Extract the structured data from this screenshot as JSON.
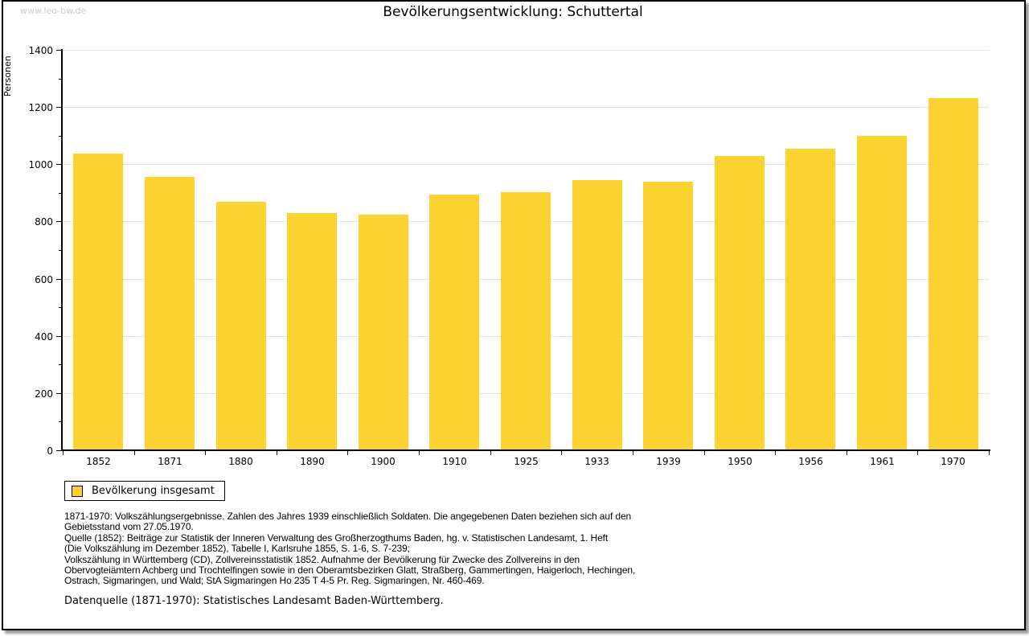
{
  "page": {
    "watermark": "www.leo-bw.de",
    "title": "Bevölkerungsentwicklung: Schuttertal"
  },
  "legend": {
    "label": "Bevölkerung insgesamt"
  },
  "chart_data": {
    "type": "bar",
    "title": "Bevölkerungsentwicklung: Schuttertal",
    "xlabel": "",
    "ylabel": "Personen",
    "categories": [
      "1852",
      "1871",
      "1880",
      "1890",
      "1900",
      "1910",
      "1925",
      "1933",
      "1939",
      "1950",
      "1956",
      "1961",
      "1970"
    ],
    "values": [
      1034,
      953,
      866,
      827,
      820,
      891,
      901,
      941,
      935,
      1027,
      1051,
      1097,
      1229
    ],
    "series_name": "Bevölkerung insgesamt",
    "ylim": [
      0,
      1400
    ],
    "yticks": [
      0,
      200,
      400,
      600,
      800,
      1000,
      1200,
      1400
    ],
    "minor_ytick_step": 100,
    "grid": true,
    "legend_position": "bottom-left",
    "bar_color": "#FDD331"
  },
  "footnotes": {
    "lines": [
      "1871-1970: Volkszählungsergebnisse. Zahlen des Jahres 1939 einschließlich Soldaten. Die angegebenen Daten beziehen sich auf den",
      "Gebietsstand vom 27.05.1970.",
      "Quelle (1852): Beiträge zur Statistik der Inneren Verwaltung des Großherzogthums Baden, hg. v. Statistischen Landesamt, 1. Heft",
      "(Die Volkszählung im Dezember 1852), Tabelle I, Karlsruhe 1855, S. 1-6, S. 7-239;",
      "Volkszählung in Württemberg (CD), Zollvereinsstatistik 1852. Aufnahme der Bevölkerung für Zwecke des Zollvereins in den",
      "Obervogteiämtern Achberg und Trochtelfingen sowie in den Oberamtsbezirken Glatt, Straßberg, Gammertingen, Haigerloch, Hechingen,",
      "Ostrach, Sigmaringen, und Wald; StA Sigmaringen Ho 235 T 4-5 Pr. Reg. Sigmaringen, Nr. 460-469."
    ],
    "datasource": "Datenquelle (1871-1970): Statistisches Landesamt Baden-Württemberg."
  },
  "colors": {
    "bar": "#FDD331",
    "gridline": "#E4E4E4",
    "axis": "#000000",
    "watermark": "#CCCCCC",
    "text": "#000000"
  }
}
